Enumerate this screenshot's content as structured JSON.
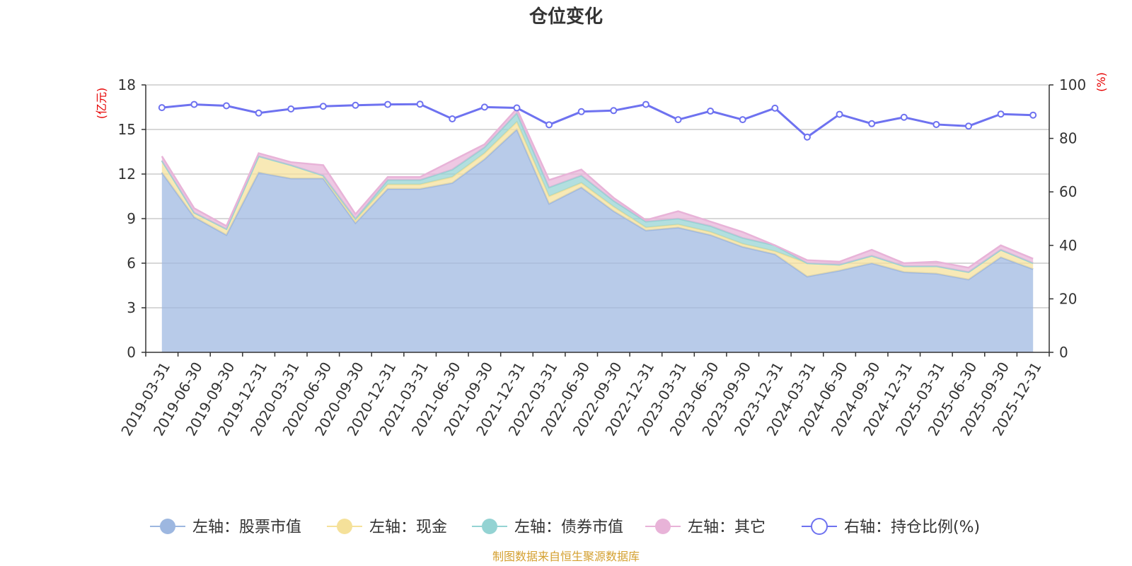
{
  "chart_data": {
    "type": "area",
    "title": "仓位变化",
    "source": "制图数据来自恒生聚源数据库",
    "left_axis": {
      "unit": "(亿元)",
      "ticks": [
        "0",
        "3",
        "6",
        "9",
        "12",
        "15",
        "18"
      ],
      "range": [
        0,
        18
      ]
    },
    "right_axis": {
      "unit": "(%)",
      "ticks": [
        "0",
        "20",
        "40",
        "60",
        "80",
        "100"
      ],
      "range": [
        0,
        100
      ]
    },
    "categories": [
      "2019-03-31",
      "2019-06-30",
      "2019-09-30",
      "2019-12-31",
      "2020-03-31",
      "2020-06-30",
      "2020-09-30",
      "2020-12-31",
      "2021-03-31",
      "2021-06-30",
      "2021-09-30",
      "2021-12-31",
      "2022-03-31",
      "2022-06-30",
      "2022-09-30",
      "2022-12-31",
      "2023-03-31",
      "2023-06-30",
      "2023-09-30",
      "2023-12-31",
      "2024-03-31",
      "2024-06-30",
      "2024-09-30",
      "2024-12-31",
      "2025-03-31",
      "2025-06-30",
      "2025-09-30",
      "2025-12-31"
    ],
    "series": [
      {
        "name": "左轴：股票市值",
        "axis": "left",
        "color": "#9db7e0",
        "values": [
          12.1,
          9.1,
          7.9,
          12.1,
          11.7,
          11.7,
          8.7,
          11.0,
          11.0,
          11.4,
          13.0,
          15.0,
          10.0,
          11.1,
          9.5,
          8.2,
          8.4,
          7.9,
          7.1,
          6.6,
          5.1,
          5.5,
          6.0,
          5.4,
          5.3,
          4.9,
          6.4,
          5.6
        ]
      },
      {
        "name": "左轴：现金",
        "axis": "left",
        "color": "#f5e19a",
        "values": [
          0.8,
          0.3,
          0.4,
          1.1,
          0.9,
          0.2,
          0.2,
          0.3,
          0.3,
          0.4,
          0.4,
          0.5,
          0.5,
          0.3,
          0.3,
          0.2,
          0.2,
          0.2,
          0.2,
          0.2,
          0.9,
          0.4,
          0.5,
          0.4,
          0.5,
          0.5,
          0.5,
          0.4
        ]
      },
      {
        "name": "左轴：债券市值",
        "axis": "left",
        "color": "#94d3d3",
        "values": [
          0,
          0,
          0,
          0,
          0,
          0,
          0.1,
          0.3,
          0.3,
          0.5,
          0.4,
          0.6,
          0.6,
          0.5,
          0.4,
          0.4,
          0.4,
          0.4,
          0.4,
          0.4,
          0,
          0,
          0,
          0,
          0,
          0,
          0,
          0
        ]
      },
      {
        "name": "左轴：其它",
        "axis": "left",
        "color": "#e8b3d8",
        "values": [
          0.3,
          0.3,
          0.2,
          0.2,
          0.2,
          0.7,
          0.3,
          0.2,
          0.2,
          0.6,
          0.2,
          0.3,
          0.5,
          0.4,
          0.2,
          0.1,
          0.5,
          0.3,
          0.4,
          0,
          0.2,
          0.2,
          0.4,
          0.2,
          0.3,
          0.3,
          0.3,
          0.3
        ]
      },
      {
        "name": "右轴：持仓比例(%)",
        "axis": "right",
        "color": "#6e72f0",
        "values": [
          91.5,
          92.7,
          92.2,
          89.5,
          91.0,
          92.0,
          92.4,
          92.7,
          92.8,
          87.3,
          91.7,
          91.4,
          85.1,
          90.0,
          90.4,
          92.7,
          87.0,
          90.2,
          87.0,
          91.3,
          80.5,
          89.0,
          85.5,
          87.9,
          85.2,
          84.6,
          89.1,
          88.7
        ]
      }
    ]
  }
}
